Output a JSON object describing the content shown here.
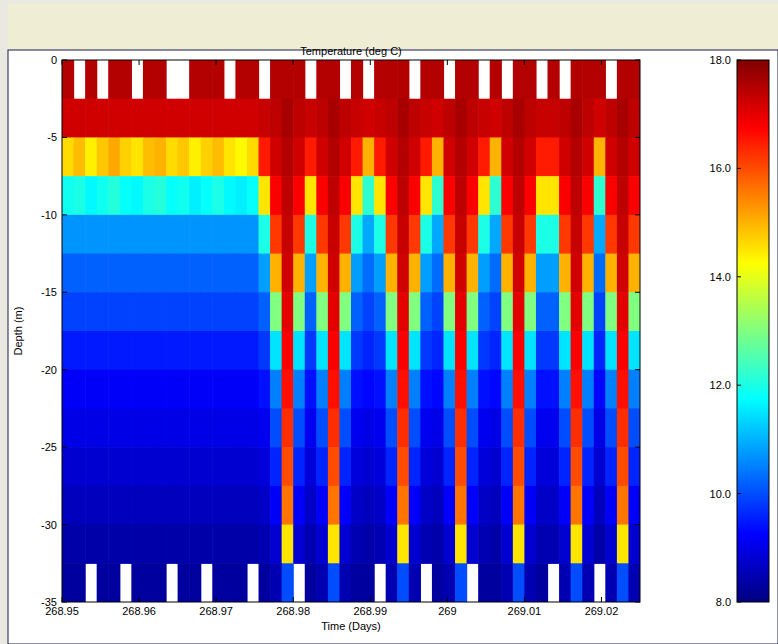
{
  "chart_data": {
    "type": "heatmap",
    "title": "Temperature (deg C)",
    "x_label": "Time (Days)",
    "y_label": "Depth (m)",
    "xlim": [
      268.95,
      269.025
    ],
    "xticks": [
      268.95,
      268.96,
      268.97,
      268.98,
      268.99,
      269,
      269.01,
      269.02
    ],
    "ylim": [
      -35,
      0
    ],
    "yticks": [
      0,
      -5,
      -10,
      -15,
      -20,
      -25,
      -30,
      -35
    ],
    "x_bins": [
      268.95,
      268.9515,
      268.953,
      268.9545,
      268.956,
      268.9575,
      268.959,
      268.9605,
      268.962,
      268.9635,
      268.965,
      268.9665,
      268.968,
      268.9695,
      268.971,
      268.9725,
      268.974,
      268.9755,
      268.977,
      268.9785,
      268.98,
      268.9815,
      268.983,
      268.9845,
      268.986,
      268.9875,
      268.989,
      268.9905,
      268.992,
      268.9935,
      268.995,
      268.9965,
      268.998,
      268.9995,
      269.001,
      269.0025,
      269.004,
      269.0055,
      269.007,
      269.0085,
      269.01,
      269.0115,
      269.013,
      269.0145,
      269.016,
      269.0175,
      269.019,
      269.0205,
      269.022,
      269.0235,
      269.025
    ],
    "y_bins": [
      0,
      -2.5,
      -5,
      -7.5,
      -10,
      -12.5,
      -15,
      -17.5,
      -20,
      -22.5,
      -25,
      -27.5,
      -30,
      -32.5,
      -35
    ],
    "cells": [
      [
        17.5,
        null,
        17.5,
        null,
        17.5,
        17.5,
        null,
        17.5,
        17.5,
        null,
        null,
        17.5,
        17.5,
        17.5,
        null,
        17.5,
        17.5,
        null,
        17.5,
        17.5,
        17.5,
        null,
        17.5,
        17.5,
        null,
        17.5,
        null,
        17.5,
        17.5,
        17.5,
        null,
        17.5,
        17.5,
        null,
        17.5,
        17.5,
        null,
        17.5,
        null,
        17.5,
        17.5,
        null,
        17.5,
        null,
        17.5,
        17.5,
        17.5,
        null,
        17.5,
        17.5
      ],
      [
        17.2,
        17.2,
        17.2,
        17.2,
        17.2,
        17.2,
        17.2,
        17.2,
        17.2,
        17.2,
        17.2,
        17.2,
        17.2,
        17.2,
        17.2,
        17.2,
        17.2,
        17.3,
        17.4,
        17.6,
        17.4,
        17.3,
        17.4,
        17.6,
        17.4,
        17.3,
        17.2,
        17.3,
        17.4,
        17.6,
        17.4,
        17.3,
        17.2,
        17.4,
        17.6,
        17.4,
        17.3,
        17.2,
        17.4,
        17.6,
        17.4,
        17.3,
        17.3,
        17.4,
        17.6,
        17.4,
        17.2,
        17.4,
        17.6,
        17.4
      ],
      [
        14.6,
        14.9,
        14.4,
        14.8,
        15.1,
        14.7,
        14.5,
        14.9,
        15.0,
        14.6,
        14.8,
        14.4,
        14.7,
        14.9,
        14.5,
        14.3,
        14.6,
        16.5,
        17.2,
        17.5,
        17.2,
        16.5,
        17.2,
        17.5,
        17.2,
        16.5,
        15.0,
        16.5,
        17.2,
        17.5,
        17.2,
        16.5,
        15.0,
        17.2,
        17.5,
        17.2,
        16.5,
        15.0,
        17.2,
        17.5,
        17.2,
        16.5,
        16.5,
        17.2,
        17.5,
        17.2,
        15.0,
        17.2,
        17.5,
        17.2
      ],
      [
        11.9,
        12.0,
        11.7,
        11.9,
        12.1,
        11.8,
        11.7,
        12.0,
        12.1,
        11.8,
        11.9,
        11.6,
        11.8,
        12.0,
        11.7,
        11.6,
        11.8,
        14.5,
        16.8,
        17.4,
        16.8,
        14.5,
        16.8,
        17.4,
        16.8,
        14.5,
        12.2,
        14.5,
        16.8,
        17.4,
        16.8,
        14.5,
        12.2,
        16.8,
        17.4,
        16.8,
        14.5,
        12.2,
        16.8,
        17.4,
        16.8,
        14.5,
        14.5,
        16.8,
        17.4,
        16.8,
        12.2,
        16.8,
        17.4,
        16.8
      ],
      [
        10.7,
        10.7,
        10.7,
        10.7,
        10.7,
        10.7,
        10.7,
        10.7,
        10.7,
        10.7,
        10.7,
        10.7,
        10.7,
        10.7,
        10.7,
        10.7,
        10.7,
        12.0,
        16.2,
        17.3,
        16.2,
        12.0,
        16.2,
        17.3,
        16.2,
        12.0,
        10.9,
        12.0,
        16.2,
        17.3,
        16.2,
        12.0,
        10.9,
        16.2,
        17.3,
        16.2,
        12.0,
        10.9,
        16.2,
        17.3,
        16.2,
        12.0,
        12.0,
        16.2,
        17.3,
        16.2,
        10.9,
        16.2,
        17.3,
        16.2
      ],
      [
        10.2,
        10.2,
        10.2,
        10.2,
        10.2,
        10.2,
        10.2,
        10.2,
        10.2,
        10.2,
        10.2,
        10.2,
        10.2,
        10.2,
        10.2,
        10.2,
        10.2,
        10.8,
        15.0,
        17.2,
        15.0,
        10.8,
        15.0,
        17.2,
        15.0,
        10.8,
        10.3,
        10.8,
        15.0,
        17.2,
        15.0,
        10.8,
        10.3,
        15.0,
        17.2,
        15.0,
        10.8,
        10.3,
        15.0,
        17.2,
        15.0,
        10.8,
        10.8,
        15.0,
        17.2,
        15.0,
        10.3,
        15.0,
        17.2,
        15.0
      ],
      [
        9.9,
        9.9,
        9.9,
        9.9,
        9.9,
        9.9,
        9.9,
        9.9,
        9.9,
        9.9,
        9.9,
        9.9,
        9.9,
        9.9,
        9.9,
        9.9,
        9.9,
        10.2,
        13.0,
        17.0,
        13.0,
        10.2,
        13.0,
        17.0,
        13.0,
        10.2,
        9.9,
        10.2,
        13.0,
        17.0,
        13.0,
        10.2,
        9.9,
        13.0,
        17.0,
        13.0,
        10.2,
        9.9,
        13.0,
        17.0,
        13.0,
        10.2,
        10.2,
        13.0,
        17.0,
        13.0,
        9.9,
        13.0,
        17.0,
        13.0
      ],
      [
        9.5,
        9.5,
        9.5,
        9.5,
        9.5,
        9.5,
        9.5,
        9.5,
        9.5,
        9.5,
        9.5,
        9.5,
        9.5,
        9.5,
        9.5,
        9.5,
        9.5,
        9.8,
        11.5,
        16.8,
        11.5,
        9.8,
        11.5,
        16.8,
        11.5,
        9.8,
        9.6,
        9.8,
        11.5,
        16.8,
        11.5,
        9.8,
        9.6,
        11.5,
        16.8,
        11.5,
        9.8,
        9.6,
        11.5,
        16.8,
        11.5,
        9.8,
        9.8,
        11.5,
        16.8,
        11.5,
        9.6,
        11.5,
        16.8,
        11.5
      ],
      [
        9.2,
        9.2,
        9.2,
        9.2,
        9.2,
        9.2,
        9.2,
        9.2,
        9.2,
        9.2,
        9.2,
        9.2,
        9.2,
        9.2,
        9.2,
        9.2,
        9.2,
        9.4,
        10.5,
        16.6,
        10.5,
        9.4,
        10.5,
        16.6,
        10.5,
        9.4,
        9.3,
        9.4,
        10.5,
        16.6,
        10.5,
        9.4,
        9.3,
        10.5,
        16.6,
        10.5,
        9.4,
        9.3,
        10.5,
        16.6,
        10.5,
        9.4,
        9.4,
        10.5,
        16.6,
        10.5,
        9.3,
        10.5,
        16.6,
        10.5
      ],
      [
        9.0,
        9.0,
        9.0,
        9.0,
        9.0,
        9.0,
        9.0,
        9.0,
        9.0,
        9.0,
        9.0,
        9.0,
        9.0,
        9.0,
        9.0,
        9.0,
        9.0,
        9.1,
        10.0,
        16.3,
        10.0,
        9.1,
        10.0,
        16.3,
        10.0,
        9.1,
        9.0,
        9.1,
        10.0,
        16.3,
        10.0,
        9.1,
        9.0,
        10.0,
        16.3,
        10.0,
        9.1,
        9.0,
        10.0,
        16.3,
        10.0,
        9.1,
        9.1,
        10.0,
        16.3,
        10.0,
        9.0,
        10.0,
        16.3,
        10.0
      ],
      [
        8.8,
        8.8,
        8.8,
        8.8,
        8.8,
        8.8,
        8.8,
        8.8,
        8.8,
        8.8,
        8.8,
        8.8,
        8.8,
        8.8,
        8.8,
        8.8,
        8.8,
        8.9,
        9.6,
        16.0,
        9.6,
        8.9,
        9.6,
        16.0,
        9.6,
        8.9,
        8.8,
        8.9,
        9.6,
        16.0,
        9.6,
        8.9,
        8.8,
        9.6,
        16.0,
        9.6,
        8.9,
        8.8,
        9.6,
        16.0,
        9.6,
        8.9,
        8.9,
        9.6,
        16.0,
        9.6,
        8.8,
        9.6,
        16.0,
        9.6
      ],
      [
        8.6,
        8.6,
        8.6,
        8.6,
        8.6,
        8.6,
        8.6,
        8.6,
        8.6,
        8.6,
        8.6,
        8.6,
        8.6,
        8.6,
        8.6,
        8.6,
        8.6,
        8.7,
        9.2,
        15.6,
        9.2,
        8.7,
        9.2,
        15.6,
        9.2,
        8.7,
        8.6,
        8.7,
        9.2,
        15.6,
        9.2,
        8.7,
        8.6,
        9.2,
        15.6,
        9.2,
        8.7,
        8.6,
        9.2,
        15.6,
        9.2,
        8.7,
        8.7,
        9.2,
        15.6,
        9.2,
        8.6,
        9.2,
        15.6,
        9.2
      ],
      [
        8.4,
        8.4,
        8.4,
        8.4,
        8.4,
        8.4,
        8.4,
        8.4,
        8.4,
        8.4,
        8.4,
        8.4,
        8.4,
        8.4,
        8.4,
        8.4,
        8.4,
        8.5,
        8.8,
        14.5,
        8.8,
        8.5,
        8.8,
        14.5,
        8.8,
        8.5,
        8.4,
        8.5,
        8.8,
        14.5,
        8.8,
        8.5,
        8.4,
        8.8,
        14.5,
        8.8,
        8.5,
        8.4,
        8.8,
        14.5,
        8.8,
        8.5,
        8.5,
        8.8,
        14.5,
        8.8,
        8.4,
        8.8,
        14.5,
        8.8
      ],
      [
        8.3,
        8.3,
        null,
        8.3,
        8.3,
        null,
        8.3,
        8.3,
        8.3,
        null,
        8.3,
        8.3,
        null,
        8.3,
        8.3,
        8.3,
        null,
        8.3,
        8.5,
        10.0,
        null,
        8.3,
        8.5,
        10.0,
        8.5,
        8.3,
        8.3,
        null,
        8.5,
        10.0,
        8.5,
        null,
        8.3,
        8.5,
        10.0,
        null,
        8.3,
        8.3,
        8.5,
        10.0,
        8.5,
        8.3,
        null,
        8.5,
        10.0,
        8.5,
        null,
        8.5,
        10.0,
        8.5
      ]
    ],
    "colorbar": {
      "range": [
        8,
        18
      ],
      "ticks": [
        {
          "value": 8,
          "label": "8.0"
        },
        {
          "value": 10,
          "label": "10.0"
        },
        {
          "value": 12,
          "label": "12.0"
        },
        {
          "value": 14,
          "label": "14.0"
        },
        {
          "value": 16,
          "label": "16.0"
        },
        {
          "value": 18,
          "label": "18.0"
        }
      ]
    }
  }
}
